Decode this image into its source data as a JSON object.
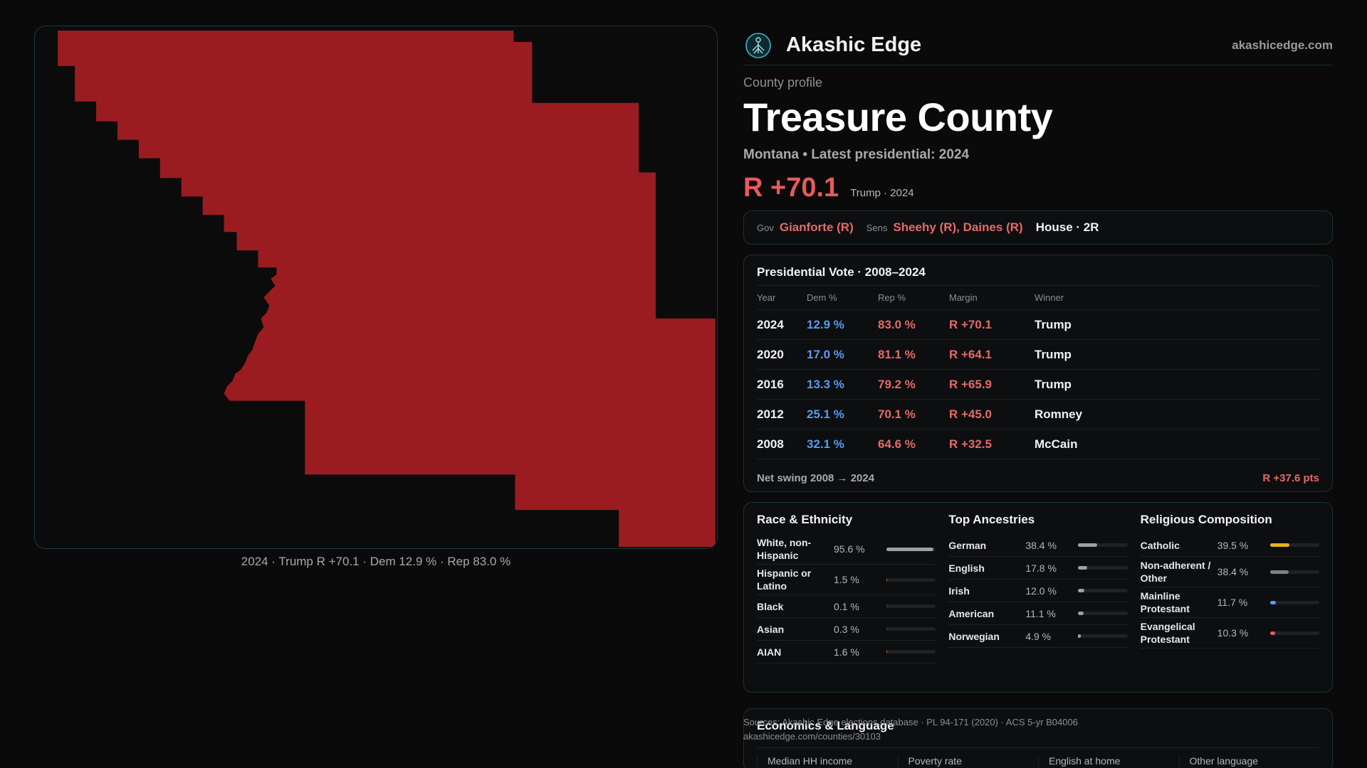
{
  "map": {
    "fill_color": "#9b1c20",
    "caption": "2024 · Trump R +70.1 · Dem 12.9 % · Rep 83.0 %"
  },
  "brand": {
    "name": "Akashic Edge",
    "domain": "akashicedge.com",
    "logo_icon": "tree-of-life-icon"
  },
  "profile": {
    "eyebrow": "County profile",
    "title": "Treasure County",
    "subtitle": "Montana • Latest presidential: 2024",
    "margin": "R +70.1",
    "winner_year": "Trump · 2024"
  },
  "officials": {
    "gov_label": "Gov",
    "gov": "Gianforte (R)",
    "sens_label": "Sens",
    "sens": "Sheehy (R), Daines (R)",
    "house": "House · 2R"
  },
  "presidential": {
    "title": "Presidential Vote · 2008–2024",
    "headers": [
      "Year",
      "Dem %",
      "Rep %",
      "Margin",
      "Winner"
    ],
    "rows": [
      {
        "year": "2024",
        "dem": "12.9 %",
        "rep": "83.0 %",
        "margin": "R +70.1",
        "winner": "Trump"
      },
      {
        "year": "2020",
        "dem": "17.0 %",
        "rep": "81.1 %",
        "margin": "R +64.1",
        "winner": "Trump"
      },
      {
        "year": "2016",
        "dem": "13.3 %",
        "rep": "79.2 %",
        "margin": "R +65.9",
        "winner": "Trump"
      },
      {
        "year": "2012",
        "dem": "25.1 %",
        "rep": "70.1 %",
        "margin": "R +45.0",
        "winner": "Romney"
      },
      {
        "year": "2008",
        "dem": "32.1 %",
        "rep": "64.6 %",
        "margin": "R +32.5",
        "winner": "McCain"
      }
    ],
    "swing_label": "Net swing 2008 → 2024",
    "swing_value": "R +37.6 pts"
  },
  "race": {
    "title": "Race & Ethnicity",
    "items": [
      {
        "label": "White, non-Hispanic",
        "value": "95.6 %",
        "pct": 95.6,
        "color": "#9aa0a8"
      },
      {
        "label": "Hispanic or Latino",
        "value": "1.5 %",
        "pct": 1.5,
        "color": "#b04040"
      },
      {
        "label": "Black",
        "value": "0.1 %",
        "pct": 0.1,
        "color": "#3a3d40"
      },
      {
        "label": "Asian",
        "value": "0.3 %",
        "pct": 0.3,
        "color": "#3a3d40"
      },
      {
        "label": "AIAN",
        "value": "1.6 %",
        "pct": 1.6,
        "color": "#b04040"
      }
    ]
  },
  "ancestry": {
    "title": "Top Ancestries",
    "items": [
      {
        "label": "German",
        "value": "38.4 %",
        "pct": 38.4,
        "color": "#9aa0a8"
      },
      {
        "label": "English",
        "value": "17.8 %",
        "pct": 17.8,
        "color": "#9aa0a8"
      },
      {
        "label": "Irish",
        "value": "12.0 %",
        "pct": 12.0,
        "color": "#9aa0a8"
      },
      {
        "label": "American",
        "value": "11.1 %",
        "pct": 11.1,
        "color": "#9aa0a8"
      },
      {
        "label": "Norwegian",
        "value": "4.9 %",
        "pct": 4.9,
        "color": "#9aa0a8"
      }
    ]
  },
  "religion": {
    "title": "Religious Composition",
    "items": [
      {
        "label": "Catholic",
        "value": "39.5 %",
        "pct": 39.5,
        "color": "#e8b020"
      },
      {
        "label": "Non-adherent / Other",
        "value": "38.4 %",
        "pct": 38.4,
        "color": "#7c8088"
      },
      {
        "label": "Mainline Protestant",
        "value": "11.7 %",
        "pct": 11.7,
        "color": "#5a9bf0"
      },
      {
        "label": "Evangelical Protestant",
        "value": "10.3 %",
        "pct": 10.3,
        "color": "#e85a5a"
      }
    ]
  },
  "economics": {
    "title": "Economics & Language",
    "columns": [
      "Median HH income",
      "Poverty rate",
      "English at home",
      "Other language"
    ]
  },
  "sources": {
    "line1": "Sources: Akashic Edge elections database · PL 94-171 (2020) · ACS 5-yr B04006",
    "line2": "akashicedge.com/counties/30103"
  }
}
